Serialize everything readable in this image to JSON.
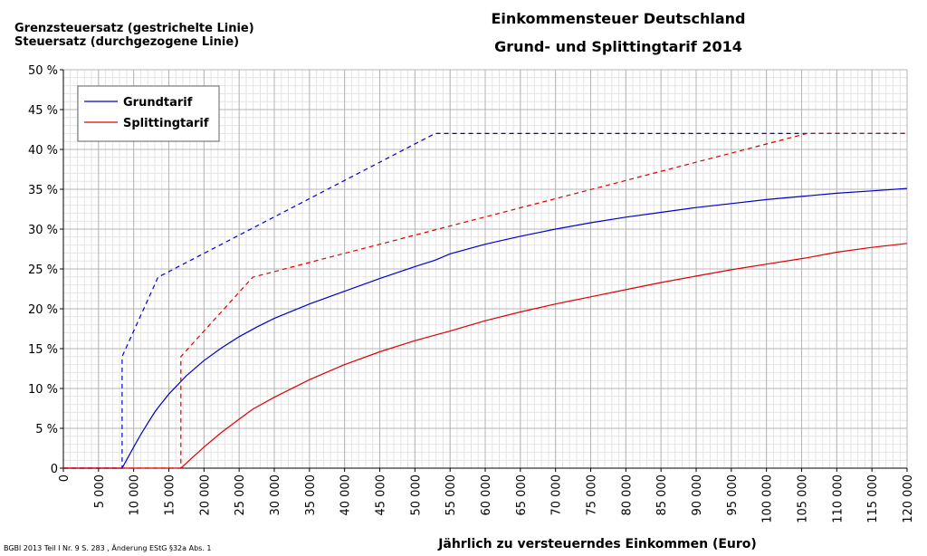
{
  "chart_data": {
    "type": "line",
    "title": "Einkommensteuer Deutschland",
    "subtitle": "Grund- und Splittingtarif 2014",
    "top_labels": [
      "Grenzsteuersatz (gestrichelte Linie)",
      "Steuersatz (durchgezogene Linie)"
    ],
    "xlabel": "Jährlich zu versteuerndes Einkommen (Euro)",
    "footnote": "BGBl 2013 Teil I Nr. 9 S. 283 , Änderung EStG §32a Abs. 1",
    "xlim": [
      0,
      120000
    ],
    "ylim": [
      0,
      50
    ],
    "xticks": [
      0,
      5000,
      10000,
      15000,
      20000,
      25000,
      30000,
      35000,
      40000,
      45000,
      50000,
      55000,
      60000,
      65000,
      70000,
      75000,
      80000,
      85000,
      90000,
      95000,
      100000,
      105000,
      110000,
      115000,
      120000
    ],
    "xtick_labels": [
      "0",
      "5 000",
      "10 000",
      "15 000",
      "20 000",
      "25 000",
      "30 000",
      "35 000",
      "40 000",
      "45 000",
      "50 000",
      "55 000",
      "60 000",
      "65 000",
      "70 000",
      "75 000",
      "80 000",
      "85 000",
      "90 000",
      "95 000",
      "100 000",
      "105 000",
      "110 000",
      "115 000",
      "120 000"
    ],
    "yticks": [
      0,
      5,
      10,
      15,
      20,
      25,
      30,
      35,
      40,
      45,
      50
    ],
    "ytick_labels": [
      "0",
      "5 %",
      "10 %",
      "15 %",
      "20 %",
      "25 %",
      "30 %",
      "35 %",
      "40 %",
      "45 %",
      "50 %"
    ],
    "grid": true,
    "legend": {
      "position": "top-left",
      "entries": [
        "Grundtarif",
        "Splittingtarif"
      ]
    },
    "series": [
      {
        "name": "Grundtarif",
        "kind": "average",
        "color": "#0000cc",
        "style": "solid",
        "x": [
          0,
          8354,
          9000,
          10000,
          11000,
          12000,
          13000,
          13469,
          15000,
          17500,
          20000,
          22500,
          25000,
          27500,
          30000,
          35000,
          40000,
          45000,
          50000,
          52881,
          55000,
          60000,
          65000,
          70000,
          75000,
          80000,
          85000,
          90000,
          95000,
          100000,
          105000,
          110000,
          115000,
          120000
        ],
        "y": [
          0,
          0,
          1.05,
          2.65,
          4.2,
          5.65,
          7.05,
          7.6,
          9.3,
          11.6,
          13.5,
          15.1,
          16.5,
          17.7,
          18.8,
          20.6,
          22.2,
          23.8,
          25.3,
          26.1,
          26.9,
          28.1,
          29.1,
          30.0,
          30.8,
          31.5,
          32.1,
          32.7,
          33.2,
          33.7,
          34.1,
          34.5,
          34.8,
          35.1
        ]
      },
      {
        "name": "Grundtarif",
        "kind": "marginal",
        "color": "#0000cc",
        "style": "dashed",
        "x": [
          0,
          8354,
          8355,
          13469,
          52881,
          120000
        ],
        "y": [
          0,
          0,
          14,
          23.97,
          42,
          42
        ]
      },
      {
        "name": "Splittingtarif",
        "kind": "average",
        "color": "#dd0000",
        "style": "solid",
        "x": [
          0,
          16708,
          18000,
          20000,
          22500,
          25000,
          26938,
          30000,
          35000,
          40000,
          45000,
          50000,
          55000,
          60000,
          65000,
          70000,
          75000,
          80000,
          85000,
          90000,
          95000,
          100000,
          105000,
          105762,
          110000,
          115000,
          120000
        ],
        "y": [
          0,
          0,
          1.05,
          2.65,
          4.5,
          6.15,
          7.4,
          8.9,
          11.1,
          13.0,
          14.6,
          16.0,
          17.2,
          18.5,
          19.6,
          20.6,
          21.5,
          22.4,
          23.3,
          24.1,
          24.9,
          25.6,
          26.3,
          26.4,
          27.1,
          27.7,
          28.2
        ]
      },
      {
        "name": "Splittingtarif",
        "kind": "marginal",
        "color": "#dd0000",
        "style": "dashed",
        "x": [
          0,
          16708,
          16709,
          26938,
          105762,
          120000
        ],
        "y": [
          0,
          0,
          14,
          23.97,
          42,
          42
        ]
      }
    ]
  }
}
